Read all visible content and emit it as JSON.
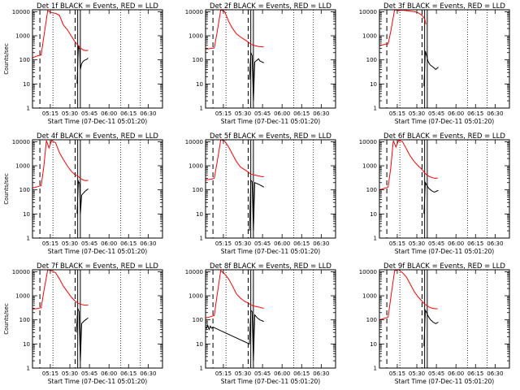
{
  "chart_data": [
    {
      "type": "line",
      "title": "Det 1f BLACK = Events, RED = LLD",
      "xlabel": "Start Time (07-Dec-11 05:01:20)",
      "ylabel": "Counts/sec",
      "yscale": "log",
      "ylim": [
        1,
        12000
      ],
      "xlim": [
        "05:01:20",
        "06:41:00"
      ],
      "yticks": [
        "1",
        "10",
        "100",
        "1000",
        "10000"
      ],
      "xticks": [
        "05:15",
        "05:30",
        "05:45",
        "06:00",
        "06:15",
        "06:30"
      ],
      "dashed_lines": [
        "05:07",
        "05:34"
      ],
      "solid_lines": [
        "05:36",
        "05:38"
      ],
      "dotted_lines": [
        "05:17",
        "06:09",
        "06:24"
      ],
      "series": [
        {
          "color": "#ff0000",
          "x": [
            "05:01:20",
            "05:04",
            "05:06",
            "05:08",
            "05:10",
            "05:13",
            "05:16",
            "05:19",
            "05:22",
            "05:25",
            "05:28",
            "05:31",
            "05:34",
            "05:36",
            "05:38",
            "05:40",
            "05:42",
            "05:44"
          ],
          "y": [
            120,
            140,
            150,
            160,
            900,
            11000,
            9000,
            8500,
            7000,
            2800,
            1800,
            1000,
            550,
            420,
            320,
            260,
            240,
            250
          ]
        },
        {
          "color": "#000000",
          "x": [
            "05:35.5",
            "05:36.5",
            "05:37.5",
            "05:38",
            "05:39",
            "05:40",
            "05:41",
            "05:42",
            "05:43",
            "05:44"
          ],
          "y": [
            10,
            350,
            280,
            40,
            70,
            85,
            95,
            100,
            105,
            120
          ]
        }
      ]
    },
    {
      "type": "line",
      "title": "Det 2f BLACK = Events, RED = LLD",
      "xlabel": "Start Time (07-Dec-11 05:01:20)",
      "ylabel": "",
      "yscale": "log",
      "ylim": [
        1,
        12000
      ],
      "xlim": [
        "05:01:20",
        "06:41:00"
      ],
      "yticks": [
        "1",
        "10",
        "100",
        "1000",
        "10000"
      ],
      "xticks": [
        "05:15",
        "05:30",
        "05:45",
        "06:00",
        "06:15",
        "06:30"
      ],
      "dashed_lines": [
        "05:07",
        "05:34"
      ],
      "solid_lines": [
        "05:36",
        "05:38"
      ],
      "dotted_lines": [
        "05:17",
        "06:09",
        "06:24"
      ],
      "series": [
        {
          "color": "#ff0000",
          "x": [
            "05:01:20",
            "05:04",
            "05:06",
            "05:08",
            "05:10",
            "05:13",
            "05:16",
            "05:19",
            "05:22",
            "05:25",
            "05:28",
            "05:31",
            "05:34",
            "05:36",
            "05:38",
            "05:40",
            "05:42",
            "05:44",
            "05:46"
          ],
          "y": [
            280,
            290,
            300,
            310,
            1200,
            12000,
            10000,
            4000,
            2000,
            1200,
            900,
            700,
            550,
            450,
            400,
            380,
            360,
            350,
            340
          ]
        },
        {
          "color": "#000000",
          "x": [
            "05:35",
            "05:36",
            "05:37",
            "05:38",
            "05:39",
            "05:40",
            "05:41",
            "05:42",
            "05:43",
            "05:44",
            "05:45",
            "05:46"
          ],
          "y": [
            15,
            200,
            150,
            2,
            80,
            90,
            100,
            110,
            90,
            85,
            80,
            75
          ]
        }
      ]
    },
    {
      "type": "line",
      "title": "Det 3f BLACK = Events, RED = LLD",
      "xlabel": "Start Time (07-Dec-11 05:01:20)",
      "ylabel": "",
      "yscale": "log",
      "ylim": [
        1,
        12000
      ],
      "xlim": [
        "05:01:20",
        "06:41:00"
      ],
      "yticks": [
        "1",
        "10",
        "100",
        "1000",
        "10000"
      ],
      "xticks": [
        "05:15",
        "05:30",
        "05:45",
        "06:00",
        "06:15",
        "06:30"
      ],
      "dashed_lines": [
        "05:07",
        "05:34"
      ],
      "solid_lines": [
        "05:36",
        "05:38"
      ],
      "dotted_lines": [
        "05:17",
        "06:09",
        "06:24"
      ],
      "series": [
        {
          "color": "#ff0000",
          "x": [
            "05:01:20",
            "05:04",
            "05:06",
            "05:08",
            "05:10",
            "05:13",
            "05:16",
            "05:19",
            "05:22",
            "05:25",
            "05:28",
            "05:31",
            "05:34",
            "05:36",
            "05:37"
          ],
          "y": [
            400,
            420,
            450,
            460,
            1500,
            12000,
            11000,
            11500,
            11000,
            10500,
            10000,
            9000,
            7000,
            5000,
            3000
          ]
        },
        {
          "color": "#000000",
          "x": [
            "05:35.5",
            "05:36.5",
            "05:37.5",
            "05:38.5",
            "05:39.5",
            "05:40.5",
            "05:41.5",
            "05:42.5",
            "05:43.5",
            "05:44.5",
            "05:45.5",
            "05:46.5"
          ],
          "y": [
            8,
            230,
            150,
            90,
            70,
            60,
            55,
            50,
            45,
            40,
            45,
            50
          ]
        }
      ]
    },
    {
      "type": "line",
      "title": "Det 4f BLACK = Events, RED = LLD",
      "xlabel": "Start Time (07-Dec-11 05:01:20)",
      "ylabel": "Counts/sec",
      "yscale": "log",
      "ylim": [
        1,
        12000
      ],
      "xlim": [
        "05:01:20",
        "06:41:00"
      ],
      "yticks": [
        "1",
        "10",
        "100",
        "1000",
        "10000"
      ],
      "xticks": [
        "05:15",
        "05:30",
        "05:45",
        "06:00",
        "06:15",
        "06:30"
      ],
      "dashed_lines": [
        "05:07",
        "05:34"
      ],
      "solid_lines": [
        "05:36",
        "05:38"
      ],
      "dotted_lines": [
        "05:17",
        "06:09",
        "06:24"
      ],
      "series": [
        {
          "color": "#ff0000",
          "x": [
            "05:01:20",
            "05:04",
            "05:06",
            "05:08",
            "05:10",
            "05:12",
            "05:14",
            "05:16",
            "05:19",
            "05:22",
            "05:25",
            "05:28",
            "05:31",
            "05:34",
            "05:36",
            "05:38",
            "05:40",
            "05:42",
            "05:44"
          ],
          "y": [
            120,
            130,
            140,
            150,
            900,
            11000,
            5500,
            11000,
            9000,
            3500,
            1800,
            1000,
            600,
            420,
            380,
            300,
            260,
            240,
            250
          ]
        },
        {
          "color": "#000000",
          "x": [
            "05:35.5",
            "05:36.5",
            "05:37.5",
            "05:38",
            "05:39",
            "05:40",
            "05:41",
            "05:42",
            "05:43",
            "05:44"
          ],
          "y": [
            10,
            230,
            180,
            10,
            60,
            70,
            80,
            90,
            100,
            110
          ]
        }
      ]
    },
    {
      "type": "line",
      "title": "Det 5f BLACK = Events, RED = LLD",
      "xlabel": "Start Time (07-Dec-11 05:01:20)",
      "ylabel": "",
      "yscale": "log",
      "ylim": [
        1,
        12000
      ],
      "xlim": [
        "05:01:20",
        "06:41:00"
      ],
      "yticks": [
        "1",
        "10",
        "100",
        "1000",
        "10000"
      ],
      "xticks": [
        "05:15",
        "05:30",
        "05:45",
        "06:00",
        "06:15",
        "06:30"
      ],
      "dashed_lines": [
        "05:07",
        "05:34"
      ],
      "solid_lines": [
        "05:36",
        "05:38"
      ],
      "dotted_lines": [
        "05:17",
        "06:09",
        "06:24"
      ],
      "series": [
        {
          "color": "#ff0000",
          "x": [
            "05:01:20",
            "05:04",
            "05:06",
            "05:08",
            "05:10",
            "05:13",
            "05:16",
            "05:19",
            "05:22",
            "05:25",
            "05:28",
            "05:31",
            "05:34",
            "05:36",
            "05:38",
            "05:40",
            "05:42",
            "05:44",
            "05:46"
          ],
          "y": [
            260,
            270,
            280,
            300,
            1200,
            12000,
            10500,
            6000,
            3000,
            1500,
            900,
            700,
            550,
            450,
            420,
            400,
            380,
            360,
            350
          ]
        },
        {
          "color": "#000000",
          "x": [
            "05:35",
            "05:36",
            "05:37",
            "05:38",
            "05:39",
            "05:40",
            "05:41",
            "05:42",
            "05:43",
            "05:44",
            "05:45",
            "05:46"
          ],
          "y": [
            2,
            250,
            220,
            2,
            200,
            190,
            180,
            170,
            160,
            150,
            140,
            130
          ]
        }
      ]
    },
    {
      "type": "line",
      "title": "Det 6f BLACK = Events, RED = LLD",
      "xlabel": "Start Time (07-Dec-11 05:01:20)",
      "ylabel": "",
      "yscale": "log",
      "ylim": [
        1,
        12000
      ],
      "xlim": [
        "05:01:20",
        "06:41:00"
      ],
      "yticks": [
        "1",
        "10",
        "100",
        "1000",
        "10000"
      ],
      "xticks": [
        "05:15",
        "05:30",
        "05:45",
        "06:00",
        "06:15",
        "06:30"
      ],
      "dashed_lines": [
        "05:07",
        "05:34"
      ],
      "solid_lines": [
        "05:36",
        "05:38"
      ],
      "dotted_lines": [
        "05:17",
        "06:09",
        "06:24"
      ],
      "series": [
        {
          "color": "#ff0000",
          "x": [
            "05:01:20",
            "05:04",
            "05:06",
            "05:08",
            "05:10",
            "05:12",
            "05:14",
            "05:16",
            "05:19",
            "05:22",
            "05:25",
            "05:28",
            "05:31",
            "05:34",
            "05:36",
            "05:38",
            "05:40",
            "05:42",
            "05:44",
            "05:46"
          ],
          "y": [
            100,
            110,
            120,
            130,
            800,
            11000,
            6000,
            11000,
            10000,
            5000,
            2500,
            1500,
            1000,
            700,
            500,
            400,
            350,
            320,
            300,
            310
          ]
        },
        {
          "color": "#000000",
          "x": [
            "05:35.5",
            "05:36.5",
            "05:37.5",
            "05:38.5",
            "05:39.5",
            "05:40.5",
            "05:41.5",
            "05:42.5",
            "05:43.5",
            "05:44.5",
            "05:45.5",
            "05:46.5"
          ],
          "y": [
            10,
            200,
            160,
            130,
            110,
            100,
            90,
            85,
            80,
            85,
            90,
            95
          ]
        }
      ]
    },
    {
      "type": "line",
      "title": "Det 7f BLACK = Events, RED = LLD",
      "xlabel": "Start Time (07-Dec-11 05:01:20)",
      "ylabel": "Counts/sec",
      "yscale": "log",
      "ylim": [
        1,
        12000
      ],
      "xlim": [
        "05:01:20",
        "06:41:00"
      ],
      "yticks": [
        "1",
        "10",
        "100",
        "1000",
        "10000"
      ],
      "xticks": [
        "05:15",
        "05:30",
        "05:45",
        "06:00",
        "06:15",
        "06:30"
      ],
      "dashed_lines": [
        "05:07",
        "05:34"
      ],
      "solid_lines": [
        "05:36",
        "05:38"
      ],
      "dotted_lines": [
        "05:17",
        "06:09",
        "06:24"
      ],
      "series": [
        {
          "color": "#ff0000",
          "x": [
            "05:01:20",
            "05:04",
            "05:06",
            "05:08",
            "05:10",
            "05:13",
            "05:16",
            "05:19",
            "05:22",
            "05:25",
            "05:28",
            "05:31",
            "05:34",
            "05:36",
            "05:38",
            "05:40",
            "05:42",
            "05:44"
          ],
          "y": [
            280,
            290,
            300,
            320,
            1500,
            12000,
            11000,
            9000,
            5000,
            2500,
            1500,
            900,
            600,
            500,
            450,
            420,
            400,
            410
          ]
        },
        {
          "color": "#000000",
          "x": [
            "05:35",
            "05:36",
            "05:37",
            "05:38",
            "05:39",
            "05:40",
            "05:41",
            "05:42",
            "05:43",
            "05:44"
          ],
          "y": [
            30,
            300,
            220,
            2,
            70,
            80,
            90,
            100,
            110,
            120
          ]
        }
      ]
    },
    {
      "type": "line",
      "title": "Det 8f BLACK = Events, RED = LLD",
      "xlabel": "Start Time (07-Dec-11 05:01:20)",
      "ylabel": "",
      "yscale": "log",
      "ylim": [
        1,
        12000
      ],
      "xlim": [
        "05:01:20",
        "06:41:00"
      ],
      "yticks": [
        "1",
        "10",
        "100",
        "1000",
        "10000"
      ],
      "xticks": [
        "05:15",
        "05:30",
        "05:45",
        "06:00",
        "06:15",
        "06:30"
      ],
      "dashed_lines": [
        "05:07",
        "05:34"
      ],
      "solid_lines": [
        "05:36",
        "05:38"
      ],
      "dotted_lines": [
        "05:17",
        "06:09",
        "06:24"
      ],
      "series": [
        {
          "color": "#ff0000",
          "x": [
            "05:01:20",
            "05:04",
            "05:06",
            "05:08",
            "05:10",
            "05:13",
            "05:16",
            "05:19",
            "05:22",
            "05:25",
            "05:28",
            "05:31",
            "05:34",
            "05:36",
            "05:38",
            "05:40",
            "05:42",
            "05:44",
            "05:46"
          ],
          "y": [
            120,
            130,
            140,
            150,
            900,
            11000,
            8000,
            5000,
            2500,
            1200,
            800,
            600,
            500,
            420,
            380,
            360,
            340,
            320,
            300
          ]
        },
        {
          "color": "#000000",
          "x": [
            "05:01:20",
            "05:02",
            "05:03",
            "05:04",
            "05:05",
            "05:06",
            "05:07",
            "05:35",
            "05:36",
            "05:37",
            "05:38",
            "05:39",
            "05:40",
            "05:41",
            "05:42",
            "05:43",
            "05:44",
            "05:45",
            "05:46"
          ],
          "y": [
            50,
            45,
            60,
            40,
            55,
            45,
            50,
            10,
            250,
            220,
            2,
            160,
            140,
            120,
            110,
            100,
            95,
            90,
            85
          ]
        }
      ]
    },
    {
      "type": "line",
      "title": "Det 9f BLACK = Events, RED = LLD",
      "xlabel": "Start Time (07-Dec-11 05:01:20)",
      "ylabel": "",
      "yscale": "log",
      "ylim": [
        1,
        12000
      ],
      "xlim": [
        "05:01:20",
        "06:41:00"
      ],
      "yticks": [
        "1",
        "10",
        "100",
        "1000",
        "10000"
      ],
      "xticks": [
        "05:15",
        "05:30",
        "05:45",
        "06:00",
        "06:15",
        "06:30"
      ],
      "dashed_lines": [
        "05:07",
        "05:34"
      ],
      "solid_lines": [
        "05:36",
        "05:38"
      ],
      "dotted_lines": [
        "05:17",
        "06:09",
        "06:24"
      ],
      "series": [
        {
          "color": "#ff0000",
          "x": [
            "05:01:20",
            "05:04",
            "05:06",
            "05:08",
            "05:10",
            "05:13",
            "05:16",
            "05:19",
            "05:22",
            "05:25",
            "05:28",
            "05:31",
            "05:34",
            "05:36",
            "05:38",
            "05:40",
            "05:42",
            "05:44",
            "05:46"
          ],
          "y": [
            100,
            110,
            120,
            130,
            800,
            11000,
            12000,
            9000,
            6000,
            3000,
            1500,
            900,
            600,
            450,
            380,
            330,
            300,
            290,
            290
          ]
        },
        {
          "color": "#000000",
          "x": [
            "05:35.5",
            "05:36.5",
            "05:37.5",
            "05:38.5",
            "05:39.5",
            "05:40.5",
            "05:41.5",
            "05:42.5",
            "05:43.5",
            "05:44.5",
            "05:45.5",
            "05:46.5"
          ],
          "y": [
            8,
            250,
            200,
            150,
            120,
            100,
            90,
            80,
            75,
            70,
            75,
            80
          ]
        }
      ]
    }
  ]
}
